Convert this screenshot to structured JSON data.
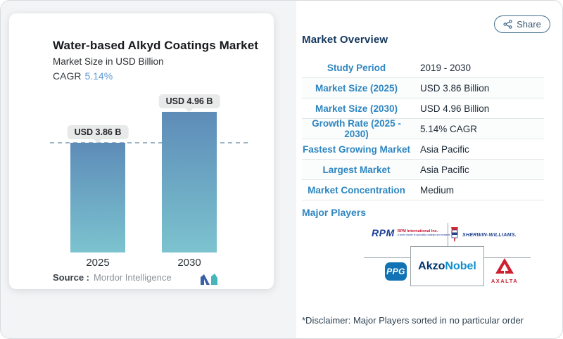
{
  "page": {
    "share_label": "Share",
    "disclaimer": "*Disclaimer: Major Players sorted in no particular order"
  },
  "chart_card": {
    "title": "Water-based Alkyd Coatings Market",
    "subtitle": "Market Size in USD Billion",
    "cagr_label": "CAGR",
    "cagr_value": "5.14%",
    "source_label": "Source :",
    "source_value": "Mordor Intelligence"
  },
  "chart_data": {
    "type": "bar",
    "categories": [
      "2025",
      "2030"
    ],
    "values": [
      3.86,
      4.96
    ],
    "bar_labels": [
      "USD 3.86 B",
      "USD 4.96 B"
    ],
    "title": "Water-based Alkyd Coatings Market",
    "xlabel": "",
    "ylabel": "Market Size in USD Billion",
    "ylim": [
      0,
      5.5
    ],
    "reference_line_value": 3.86,
    "grid": false,
    "bar_color_top": "#5d8cb8",
    "bar_color_bottom": "#7cc3cf"
  },
  "overview": {
    "heading": "Market Overview",
    "rows": [
      {
        "label": "Study Period",
        "value": "2019 - 2030"
      },
      {
        "label": "Market Size (2025)",
        "value": "USD 3.86 Billion"
      },
      {
        "label": "Market Size (2030)",
        "value": "USD 4.96 Billion"
      },
      {
        "label": "Growth Rate (2025 - 2030)",
        "value": "5.14% CAGR"
      },
      {
        "label": "Fastest Growing Market",
        "value": "Asia Pacific"
      },
      {
        "label": "Largest Market",
        "value": "Asia Pacific"
      },
      {
        "label": "Market Concentration",
        "value": "Medium"
      }
    ],
    "major_players_label": "Major Players"
  },
  "players": {
    "rpm": {
      "word": "RPM",
      "line1": "RPM International Inc.",
      "line2": "A world leader in specialty coatings and sealants"
    },
    "sherwin": {
      "text": "SHERWIN-WILLIAMS."
    },
    "ppg": {
      "text": "PPG"
    },
    "akzonobel": {
      "part1": "Akzo",
      "part2": "Nobel"
    },
    "axalta": {
      "text": "AXALTA"
    }
  },
  "colors": {
    "accent_blue": "#2e86c1",
    "heading_navy": "#14375c",
    "cagr_blue": "#5f9bd3",
    "bar_top": "#5d8cb8",
    "bar_bottom": "#7cc3cf",
    "dashed_line": "#9db4c3"
  }
}
